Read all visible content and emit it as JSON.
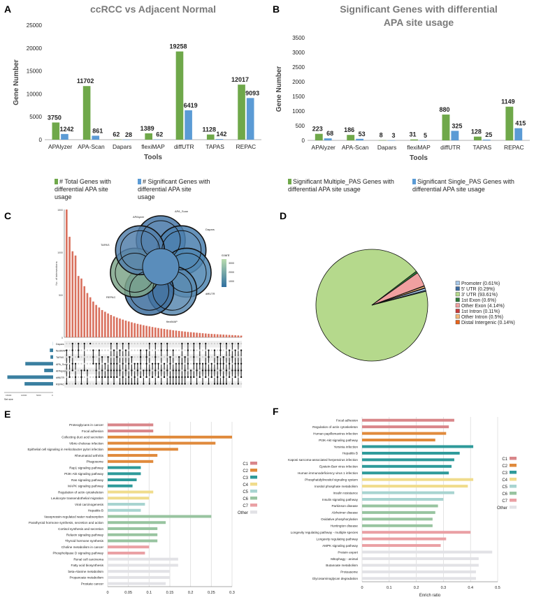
{
  "colors": {
    "green": "#6fa84a",
    "blue": "#5b9bd5",
    "bar_red": "#d9715e",
    "pie_green": "#b5d98c",
    "c1": "#d9868a",
    "c2": "#e08a3c",
    "c3": "#2e9a9a",
    "c4": "#f0dc8c",
    "c5": "#a8d4d0",
    "c6": "#98c4a0",
    "c7": "#eaa0a4",
    "other": "#e2e2e6"
  },
  "panels": {
    "a": "A",
    "b": "B",
    "c": "C",
    "d": "D",
    "e": "E",
    "f": "F"
  },
  "chart_data": [
    {
      "id": "A",
      "type": "bar",
      "title": "ccRCC vs Adjacent Normal",
      "xlabel": "Tools",
      "ylabel": "Gene Number",
      "ylim": [
        0,
        25000
      ],
      "yticks": [
        0,
        5000,
        10000,
        15000,
        20000,
        25000
      ],
      "categories": [
        "APAlyzer",
        "APA-Scan",
        "Dapars",
        "flexiMAP",
        "diffUTR",
        "TAPAS",
        "REPAC"
      ],
      "series": [
        {
          "name": "# Total Genes with differential APA site usage",
          "values": [
            3750,
            11702,
            62,
            1389,
            19258,
            1128,
            12017
          ],
          "labels": [
            "3750",
            "11702",
            "62",
            "1389",
            "19258",
            "1128",
            "12017"
          ]
        },
        {
          "name": "# Significant Genes with differential APA site usage",
          "values": [
            1242,
            861,
            28,
            62,
            6419,
            142,
            9093
          ],
          "labels": [
            "1242",
            "861",
            "28",
            "62",
            "6419",
            "142",
            "9093"
          ]
        }
      ]
    },
    {
      "id": "B",
      "type": "bar",
      "title": "Significant Genes with differential",
      "title2": "APA site usage",
      "xlabel": "Tools",
      "ylabel": "Gene Number",
      "ylim": [
        0,
        3500
      ],
      "yticks": [
        0,
        500,
        1000,
        1500,
        2000,
        2500,
        3000,
        3500
      ],
      "categories": [
        "APAlyzer",
        "APA-Scan",
        "Dapars",
        "flexiMAP",
        "diffUTR",
        "TAPAS",
        "REPAC"
      ],
      "series": [
        {
          "name": "Significant Multiple_PAS Genes with differential APA site usage",
          "values": [
            223,
            186,
            8,
            31,
            880,
            128,
            1149
          ],
          "labels": [
            "223",
            "186",
            "8",
            "31",
            "880",
            "128",
            "1149"
          ]
        },
        {
          "name": "Significant Single_PAS Genes with differential APA site usage",
          "values": [
            68,
            53,
            3,
            5,
            325,
            25,
            415
          ],
          "labels": [
            "68",
            "53",
            "3",
            "5",
            "325",
            "25",
            "415"
          ]
        }
      ]
    },
    {
      "id": "C",
      "type": "bar",
      "subtype": "upset",
      "ylabel": "No. of intersections",
      "yticks": [
        "0",
        "500",
        "1000",
        "1500"
      ],
      "ylim": [
        0,
        1500
      ],
      "intersection_sizes": [
        1500,
        1180,
        1010,
        960,
        720,
        690,
        600,
        520,
        470,
        420,
        380,
        350,
        320,
        300,
        280,
        262,
        246,
        232,
        220,
        208,
        196,
        186,
        176,
        167,
        158,
        150,
        142,
        135,
        128,
        121,
        115,
        109,
        103,
        98,
        93,
        88,
        83,
        79,
        75,
        71,
        67,
        63,
        60,
        57,
        54,
        51,
        48,
        45,
        42,
        40,
        38,
        36,
        34,
        32,
        30,
        28,
        26,
        24,
        22,
        20
      ],
      "sets": [
        "Dapars",
        "flexiMAP",
        "TAPAS",
        "APA_Scan",
        "APAlyzer",
        "diffUTR",
        "REPAC"
      ],
      "set_sizes": [
        62,
        1389,
        1128,
        11702,
        3750,
        19258,
        12017
      ],
      "set_size_label": "Set size",
      "set_size_ticks": [
        "15000",
        "10000",
        "5000",
        "0"
      ],
      "venn_labels": [
        "APAlyzer",
        "APA_Scan",
        "Dapars",
        "diffUTR",
        "flexiMAP",
        "REPAC",
        "TAPAS"
      ],
      "legend_title": "count",
      "legend_ticks": [
        "3000",
        "2000",
        "1000"
      ]
    },
    {
      "id": "D",
      "type": "pie",
      "labels": [
        "Promoter (0.61%)",
        "5' UTR (0.29%)",
        "3' UTR (93.61%)",
        "1st Exon (0.6%)",
        "Other Exon (4.14%)",
        "1st Intron (0.11%)",
        "Other Intron (0.5%)",
        "Distal Intergenic (0.14%)"
      ],
      "values": [
        0.61,
        0.29,
        93.61,
        0.6,
        4.14,
        0.11,
        0.5,
        0.14
      ],
      "colors": [
        "#a8c8e8",
        "#3c6aa0",
        "#b5d98c",
        "#2f7a3a",
        "#f0a0a0",
        "#c83c3c",
        "#f4b878",
        "#e8641c"
      ]
    },
    {
      "id": "E",
      "type": "bar",
      "orientation": "horizontal",
      "xlabel": "Enrich ratio",
      "xlim": [
        0,
        0.3
      ],
      "xticks": [
        "0",
        "0.05",
        "0.1",
        "0.15",
        "0.2",
        "0.25",
        "0.3"
      ],
      "legend": [
        "C1",
        "C2",
        "C3",
        "C4",
        "C5",
        "C6",
        "C7",
        "Other"
      ],
      "items": [
        {
          "label": "Proteoglycans in cancer",
          "value": 0.11,
          "group": "c1"
        },
        {
          "label": "Focal adhesion",
          "value": 0.11,
          "group": "c1"
        },
        {
          "label": "Collecting duct acid secretion",
          "value": 0.3,
          "group": "c2"
        },
        {
          "label": "Vibrio cholerae infection",
          "value": 0.26,
          "group": "c2"
        },
        {
          "label": "Epithelial cell signaling in Helicobacter pylori infection",
          "value": 0.17,
          "group": "c2"
        },
        {
          "label": "Rheumatoid arthritis",
          "value": 0.12,
          "group": "c2"
        },
        {
          "label": "Phagosome",
          "value": 0.11,
          "group": "c2"
        },
        {
          "label": "Rap1 signaling pathway",
          "value": 0.08,
          "group": "c3"
        },
        {
          "label": "PI3K-Akt signaling pathway",
          "value": 0.08,
          "group": "c3"
        },
        {
          "label": "Ras signaling pathway",
          "value": 0.07,
          "group": "c3"
        },
        {
          "label": "MAPK signaling pathway",
          "value": 0.06,
          "group": "c3"
        },
        {
          "label": "Regulation of actin cytoskeleton",
          "value": 0.11,
          "group": "c4"
        },
        {
          "label": "Leukocyte transendothelial migration",
          "value": 0.1,
          "group": "c4"
        },
        {
          "label": "Viral carcinogenesis",
          "value": 0.09,
          "group": "c5"
        },
        {
          "label": "Hepatitis B",
          "value": 0.08,
          "group": "c5"
        },
        {
          "label": "Vasopressin-regulated water reabsorption",
          "value": 0.25,
          "group": "c6"
        },
        {
          "label": "Parathyroid hormone synthesis, secretion and action",
          "value": 0.14,
          "group": "c6"
        },
        {
          "label": "Cortisol synthesis and secretion",
          "value": 0.12,
          "group": "c6"
        },
        {
          "label": "Relaxin signaling pathway",
          "value": 0.12,
          "group": "c6"
        },
        {
          "label": "Thyroid hormone synthesis",
          "value": 0.12,
          "group": "c6"
        },
        {
          "label": "Choline metabolism in cancer",
          "value": 0.1,
          "group": "c7"
        },
        {
          "label": "Phospholipase D signaling pathway",
          "value": 0.09,
          "group": "c7"
        },
        {
          "label": "Renal cell carcinoma",
          "value": 0.17,
          "group": "other"
        },
        {
          "label": "Fatty acid biosynthesis",
          "value": 0.17,
          "group": "other"
        },
        {
          "label": "beta-Alanine metabolism",
          "value": 0.15,
          "group": "other"
        },
        {
          "label": "Propanoate metabolism",
          "value": 0.15,
          "group": "other"
        },
        {
          "label": "Prostate cancer",
          "value": 0.14,
          "group": "other"
        }
      ]
    },
    {
      "id": "F",
      "type": "bar",
      "orientation": "horizontal",
      "xlabel": "Enrich ratio",
      "xlim": [
        0,
        0.5
      ],
      "xticks": [
        "0",
        "0.1",
        "0.2",
        "0.3",
        "0.4",
        "0.5"
      ],
      "legend": [
        "C1",
        "C2",
        "C3",
        "C4",
        "C5",
        "C6",
        "C7",
        "Other"
      ],
      "items": [
        {
          "label": "Focal adhesion",
          "value": 0.34,
          "group": "c1"
        },
        {
          "label": "Regulation of actin cytoskeleton",
          "value": 0.32,
          "group": "c1"
        },
        {
          "label": "Human papillomavirus infection",
          "value": 0.31,
          "group": "c2"
        },
        {
          "label": "PI3K-Akt signaling pathway",
          "value": 0.27,
          "group": "c2"
        },
        {
          "label": "Yersinia infection",
          "value": 0.41,
          "group": "c3"
        },
        {
          "label": "Hepatitis B",
          "value": 0.36,
          "group": "c3"
        },
        {
          "label": "Kaposi sarcoma-associated herpesvirus infection",
          "value": 0.34,
          "group": "c3"
        },
        {
          "label": "Epstein-Barr virus infection",
          "value": 0.33,
          "group": "c3"
        },
        {
          "label": "Human immunodeficiency virus 1 infection",
          "value": 0.32,
          "group": "c3"
        },
        {
          "label": "Phosphatidylinositol signaling system",
          "value": 0.41,
          "group": "c4"
        },
        {
          "label": "Inositol phosphate metabolism",
          "value": 0.39,
          "group": "c4"
        },
        {
          "label": "Insulin resistance",
          "value": 0.34,
          "group": "c5"
        },
        {
          "label": "Insulin signaling pathway",
          "value": 0.3,
          "group": "c5"
        },
        {
          "label": "Parkinson disease",
          "value": 0.28,
          "group": "c6"
        },
        {
          "label": "Alzheimer disease",
          "value": 0.27,
          "group": "c6"
        },
        {
          "label": "Oxidative phosphorylation",
          "value": 0.26,
          "group": "c6"
        },
        {
          "label": "Huntington disease",
          "value": 0.26,
          "group": "c6"
        },
        {
          "label": "Longevity regulating pathway - multiple species",
          "value": 0.4,
          "group": "c7"
        },
        {
          "label": "Longevity regulating pathway",
          "value": 0.31,
          "group": "c7"
        },
        {
          "label": "AMPK signaling pathway",
          "value": 0.29,
          "group": "c7"
        },
        {
          "label": "Protein export",
          "value": 0.48,
          "group": "other"
        },
        {
          "label": "Mitophagy - animal",
          "value": 0.43,
          "group": "other"
        },
        {
          "label": "Butanoate metabolism",
          "value": 0.43,
          "group": "other"
        },
        {
          "label": "Proteasome",
          "value": 0.42,
          "group": "other"
        },
        {
          "label": "Glycosaminoglycan degradation",
          "value": 0.42,
          "group": "other"
        }
      ]
    }
  ]
}
